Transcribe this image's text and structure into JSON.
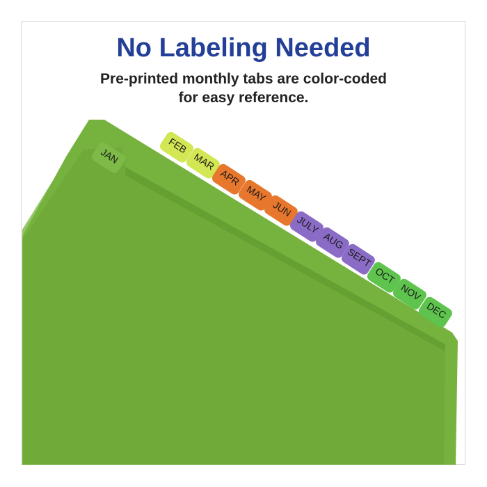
{
  "heading": "No Labeling Needed",
  "subheading": {
    "line1": "Pre-printed monthly tabs are color-coded",
    "line2": "for easy reference."
  },
  "colors": {
    "title": "#233f97",
    "folder_green": "#72ad3c",
    "yellow_green": "#d3e653",
    "orange": "#e6772c",
    "purple": "#8a6bc6",
    "green": "#5ec44e"
  },
  "tabs": [
    {
      "label": "JAN",
      "color": "#7dba47"
    },
    {
      "label": "FEB",
      "color": "#d3e653"
    },
    {
      "label": "MAR",
      "color": "#d3e653"
    },
    {
      "label": "APR",
      "color": "#e6772c"
    },
    {
      "label": "MAY",
      "color": "#e6772c"
    },
    {
      "label": "JUN",
      "color": "#e6772c"
    },
    {
      "label": "JULY",
      "color": "#8a6bc6"
    },
    {
      "label": "AUG",
      "color": "#8a6bc6"
    },
    {
      "label": "SEPT",
      "color": "#8a6bc6"
    },
    {
      "label": "OCT",
      "color": "#5ec44e"
    },
    {
      "label": "NOV",
      "color": "#5ec44e"
    },
    {
      "label": "DEC",
      "color": "#5ec44e"
    }
  ]
}
